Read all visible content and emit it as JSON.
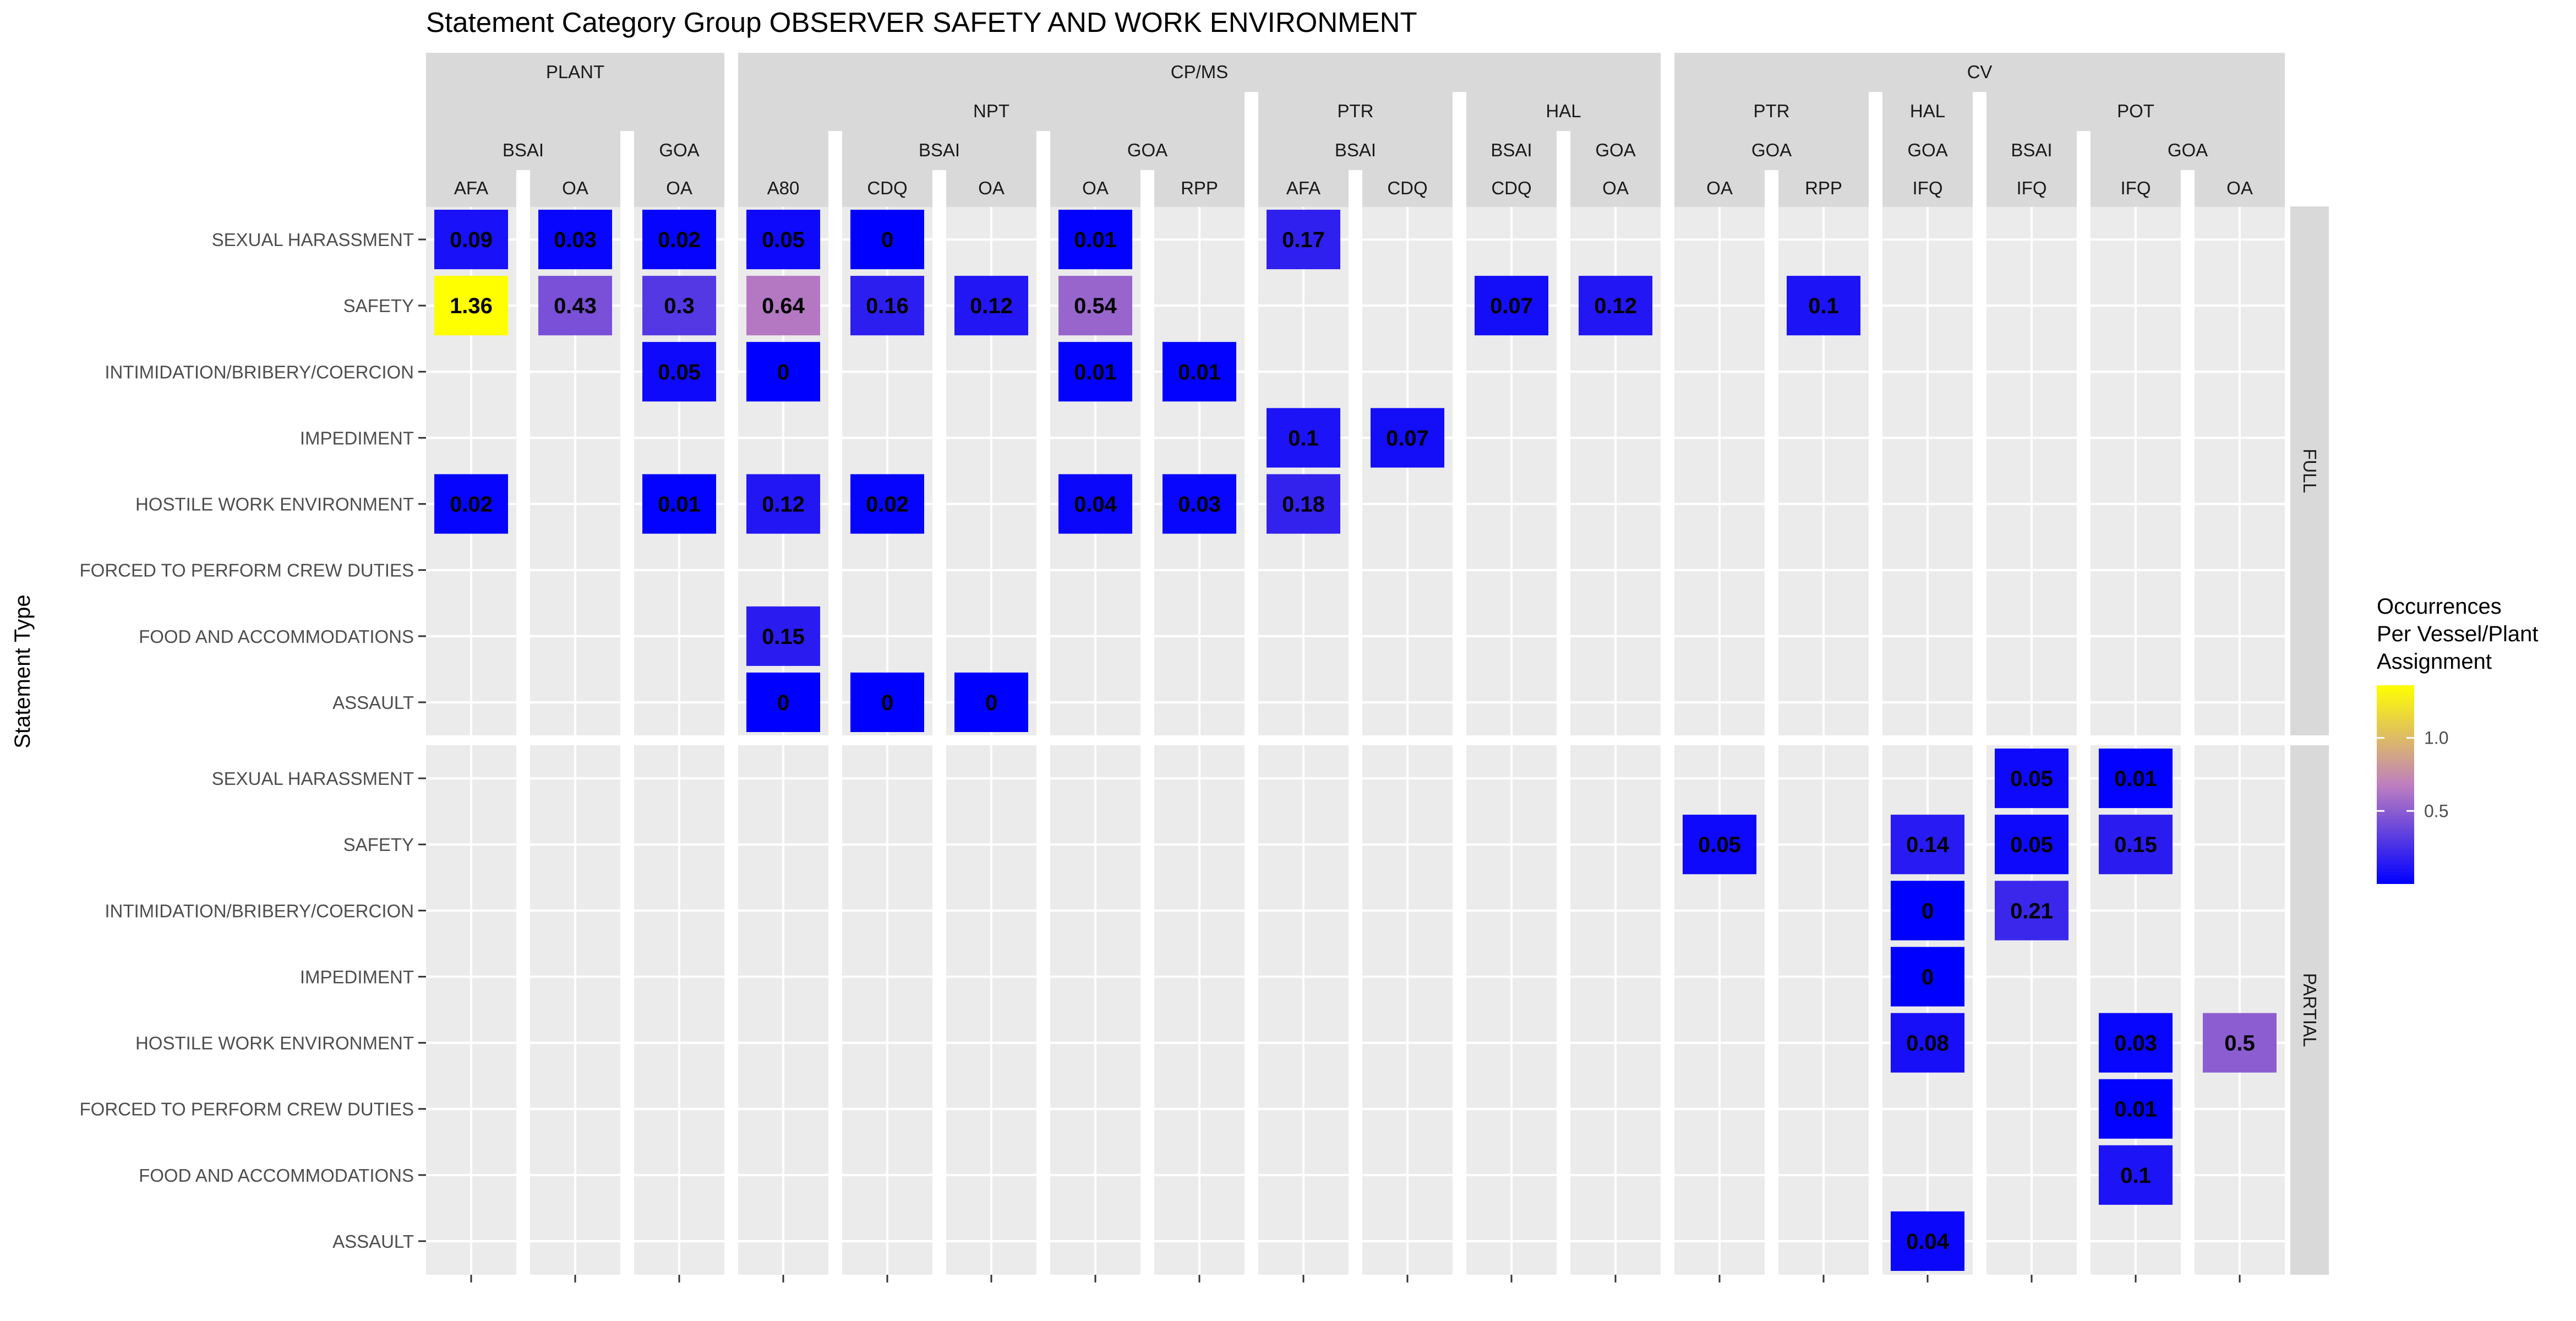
{
  "chart_data": {
    "type": "heatmap",
    "title": "Statement Category Group OBSERVER SAFETY AND WORK ENVIRONMENT",
    "ylabel": "Statement Type",
    "legend": {
      "title_lines": [
        "Occurrences",
        "Per Vessel/Plant",
        "Assignment"
      ],
      "ticks": [
        {
          "value": 1.0,
          "label": "1.0"
        },
        {
          "value": 0.5,
          "label": "0.5"
        }
      ],
      "range": [
        0,
        1.36
      ],
      "color_low": "#0000ff",
      "color_mid": "#bf7fbf",
      "color_high": "#ffff00",
      "placement": "right"
    },
    "groups": [
      {
        "label": "PLANT",
        "sectors": [
          {
            "label": "",
            "regions": [
              {
                "label": "BSAI",
                "columns": [
                  "AFA",
                  "OA"
                ]
              },
              {
                "label": "GOA",
                "columns": [
                  "OA"
                ]
              }
            ]
          }
        ]
      },
      {
        "label": "CP/MS",
        "sectors": [
          {
            "label": "NPT",
            "regions": [
              {
                "label": "",
                "columns": [
                  "A80"
                ]
              },
              {
                "label": "BSAI",
                "columns": [
                  "CDQ",
                  "OA"
                ]
              },
              {
                "label": "GOA",
                "columns": [
                  "OA",
                  "RPP"
                ]
              }
            ]
          },
          {
            "label": "PTR",
            "regions": [
              {
                "label": "BSAI",
                "columns": [
                  "AFA",
                  "CDQ"
                ]
              }
            ]
          },
          {
            "label": "HAL",
            "regions": [
              {
                "label": "BSAI",
                "columns": [
                  "CDQ"
                ]
              },
              {
                "label": "GOA",
                "columns": [
                  "OA"
                ]
              }
            ]
          }
        ]
      },
      {
        "label": "CV",
        "sectors": [
          {
            "label": "PTR",
            "regions": [
              {
                "label": "GOA",
                "columns": [
                  "OA",
                  "RPP"
                ]
              }
            ]
          },
          {
            "label": "HAL",
            "regions": [
              {
                "label": "GOA",
                "columns": [
                  "IFQ"
                ]
              }
            ]
          },
          {
            "label": "POT",
            "regions": [
              {
                "label": "BSAI",
                "columns": [
                  "IFQ"
                ]
              },
              {
                "label": "GOA",
                "columns": [
                  "IFQ",
                  "OA"
                ]
              }
            ]
          }
        ]
      }
    ],
    "row_facets": [
      {
        "label": "FULL",
        "rows": [
          "SEXUAL HARASSMENT",
          "SAFETY",
          "INTIMIDATION/BRIBERY/COERCION",
          "IMPEDIMENT",
          "HOSTILE WORK ENVIRONMENT",
          "FORCED TO PERFORM CREW DUTIES",
          "FOOD AND ACCOMMODATIONS",
          "ASSAULT"
        ]
      },
      {
        "label": "PARTIAL",
        "rows": [
          "SEXUAL HARASSMENT",
          "SAFETY",
          "INTIMIDATION/BRIBERY/COERCION",
          "IMPEDIMENT",
          "HOSTILE WORK ENVIRONMENT",
          "FORCED TO PERFORM CREW DUTIES",
          "FOOD AND ACCOMMODATIONS",
          "ASSAULT"
        ]
      }
    ],
    "cells": [
      {
        "facet": 0,
        "row": 0,
        "col": 0,
        "value": 0.09,
        "label": "0.09"
      },
      {
        "facet": 0,
        "row": 0,
        "col": 1,
        "value": 0.03,
        "label": "0.03"
      },
      {
        "facet": 0,
        "row": 0,
        "col": 2,
        "value": 0.02,
        "label": "0.02"
      },
      {
        "facet": 0,
        "row": 0,
        "col": 3,
        "value": 0.05,
        "label": "0.05"
      },
      {
        "facet": 0,
        "row": 0,
        "col": 4,
        "value": 0,
        "label": "0"
      },
      {
        "facet": 0,
        "row": 0,
        "col": 6,
        "value": 0.01,
        "label": "0.01"
      },
      {
        "facet": 0,
        "row": 0,
        "col": 8,
        "value": 0.17,
        "label": "0.17"
      },
      {
        "facet": 0,
        "row": 1,
        "col": 0,
        "value": 1.36,
        "label": "1.36"
      },
      {
        "facet": 0,
        "row": 1,
        "col": 1,
        "value": 0.43,
        "label": "0.43"
      },
      {
        "facet": 0,
        "row": 1,
        "col": 2,
        "value": 0.3,
        "label": "0.3"
      },
      {
        "facet": 0,
        "row": 1,
        "col": 3,
        "value": 0.64,
        "label": "0.64"
      },
      {
        "facet": 0,
        "row": 1,
        "col": 4,
        "value": 0.16,
        "label": "0.16"
      },
      {
        "facet": 0,
        "row": 1,
        "col": 5,
        "value": 0.12,
        "label": "0.12"
      },
      {
        "facet": 0,
        "row": 1,
        "col": 6,
        "value": 0.54,
        "label": "0.54"
      },
      {
        "facet": 0,
        "row": 1,
        "col": 10,
        "value": 0.07,
        "label": "0.07"
      },
      {
        "facet": 0,
        "row": 1,
        "col": 11,
        "value": 0.12,
        "label": "0.12"
      },
      {
        "facet": 0,
        "row": 1,
        "col": 13,
        "value": 0.1,
        "label": "0.1"
      },
      {
        "facet": 0,
        "row": 2,
        "col": 2,
        "value": 0.05,
        "label": "0.05"
      },
      {
        "facet": 0,
        "row": 2,
        "col": 3,
        "value": 0,
        "label": "0"
      },
      {
        "facet": 0,
        "row": 2,
        "col": 6,
        "value": 0.01,
        "label": "0.01"
      },
      {
        "facet": 0,
        "row": 2,
        "col": 7,
        "value": 0.01,
        "label": "0.01"
      },
      {
        "facet": 0,
        "row": 3,
        "col": 8,
        "value": 0.1,
        "label": "0.1"
      },
      {
        "facet": 0,
        "row": 3,
        "col": 9,
        "value": 0.07,
        "label": "0.07"
      },
      {
        "facet": 0,
        "row": 4,
        "col": 0,
        "value": 0.02,
        "label": "0.02"
      },
      {
        "facet": 0,
        "row": 4,
        "col": 2,
        "value": 0.01,
        "label": "0.01"
      },
      {
        "facet": 0,
        "row": 4,
        "col": 3,
        "value": 0.12,
        "label": "0.12"
      },
      {
        "facet": 0,
        "row": 4,
        "col": 4,
        "value": 0.02,
        "label": "0.02"
      },
      {
        "facet": 0,
        "row": 4,
        "col": 6,
        "value": 0.04,
        "label": "0.04"
      },
      {
        "facet": 0,
        "row": 4,
        "col": 7,
        "value": 0.03,
        "label": "0.03"
      },
      {
        "facet": 0,
        "row": 4,
        "col": 8,
        "value": 0.18,
        "label": "0.18"
      },
      {
        "facet": 0,
        "row": 6,
        "col": 3,
        "value": 0.15,
        "label": "0.15"
      },
      {
        "facet": 0,
        "row": 7,
        "col": 3,
        "value": 0,
        "label": "0"
      },
      {
        "facet": 0,
        "row": 7,
        "col": 4,
        "value": 0,
        "label": "0"
      },
      {
        "facet": 0,
        "row": 7,
        "col": 5,
        "value": 0,
        "label": "0"
      },
      {
        "facet": 1,
        "row": 0,
        "col": 15,
        "value": 0.05,
        "label": "0.05"
      },
      {
        "facet": 1,
        "row": 0,
        "col": 16,
        "value": 0.01,
        "label": "0.01"
      },
      {
        "facet": 1,
        "row": 1,
        "col": 12,
        "value": 0.05,
        "label": "0.05"
      },
      {
        "facet": 1,
        "row": 1,
        "col": 14,
        "value": 0.14,
        "label": "0.14"
      },
      {
        "facet": 1,
        "row": 1,
        "col": 15,
        "value": 0.05,
        "label": "0.05"
      },
      {
        "facet": 1,
        "row": 1,
        "col": 16,
        "value": 0.15,
        "label": "0.15"
      },
      {
        "facet": 1,
        "row": 2,
        "col": 14,
        "value": 0,
        "label": "0"
      },
      {
        "facet": 1,
        "row": 2,
        "col": 15,
        "value": 0.21,
        "label": "0.21"
      },
      {
        "facet": 1,
        "row": 3,
        "col": 14,
        "value": 0,
        "label": "0"
      },
      {
        "facet": 1,
        "row": 4,
        "col": 14,
        "value": 0.08,
        "label": "0.08"
      },
      {
        "facet": 1,
        "row": 4,
        "col": 16,
        "value": 0.03,
        "label": "0.03"
      },
      {
        "facet": 1,
        "row": 4,
        "col": 17,
        "value": 0.5,
        "label": "0.5"
      },
      {
        "facet": 1,
        "row": 5,
        "col": 16,
        "value": 0.01,
        "label": "0.01"
      },
      {
        "facet": 1,
        "row": 6,
        "col": 16,
        "value": 0.1,
        "label": "0.1"
      },
      {
        "facet": 1,
        "row": 7,
        "col": 14,
        "value": 0.04,
        "label": "0.04"
      }
    ]
  }
}
